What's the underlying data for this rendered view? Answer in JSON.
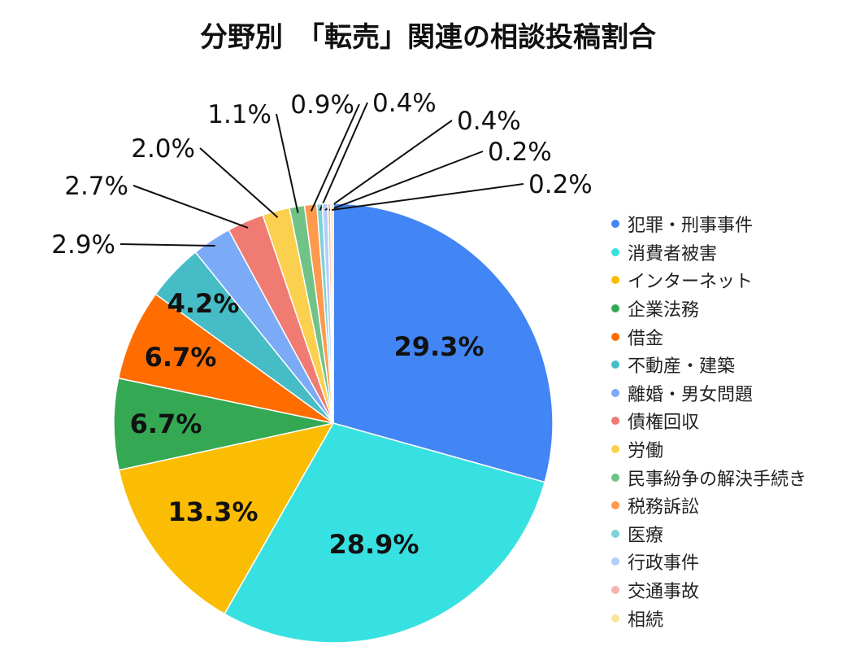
{
  "chart_data": {
    "type": "pie",
    "title": "分野別　「転売」関連の相談投稿割合",
    "legend_position": "right",
    "slices": [
      {
        "label": "犯罪・刑事事件",
        "value": 29.3,
        "display": "29.3%",
        "color": "#4285F4"
      },
      {
        "label": "消費者被害",
        "value": 28.9,
        "display": "28.9%",
        "color": "#38E1E1"
      },
      {
        "label": "インターネット",
        "value": 13.3,
        "display": "13.3%",
        "color": "#FBBC04"
      },
      {
        "label": "企業法務",
        "value": 6.7,
        "display": "6.7%",
        "color": "#34A853"
      },
      {
        "label": "借金",
        "value": 6.7,
        "display": "6.7%",
        "color": "#FF6D01"
      },
      {
        "label": "不動産・建築",
        "value": 4.2,
        "display": "4.2%",
        "color": "#46BDC6"
      },
      {
        "label": "離婚・男女問題",
        "value": 2.9,
        "display": "2.9%",
        "color": "#7BAAF7"
      },
      {
        "label": "債権回収",
        "value": 2.7,
        "display": "2.7%",
        "color": "#F07B72"
      },
      {
        "label": "労働",
        "value": 2.0,
        "display": "2.0%",
        "color": "#FCD04F"
      },
      {
        "label": "民事紛争の解決手続き",
        "value": 1.1,
        "display": "1.1%",
        "color": "#71C287"
      },
      {
        "label": "税務訴訟",
        "value": 0.9,
        "display": "0.9%",
        "color": "#FF994D"
      },
      {
        "label": "医療",
        "value": 0.4,
        "display": "0.4%",
        "color": "#7ED1D7"
      },
      {
        "label": "行政事件",
        "value": 0.4,
        "display": "0.4%",
        "color": "#B3CEFB"
      },
      {
        "label": "交通事故",
        "value": 0.2,
        "display": "0.2%",
        "color": "#F7B4AE"
      },
      {
        "label": "相続",
        "value": 0.2,
        "display": "0.2%",
        "color": "#FDE49B"
      }
    ]
  }
}
